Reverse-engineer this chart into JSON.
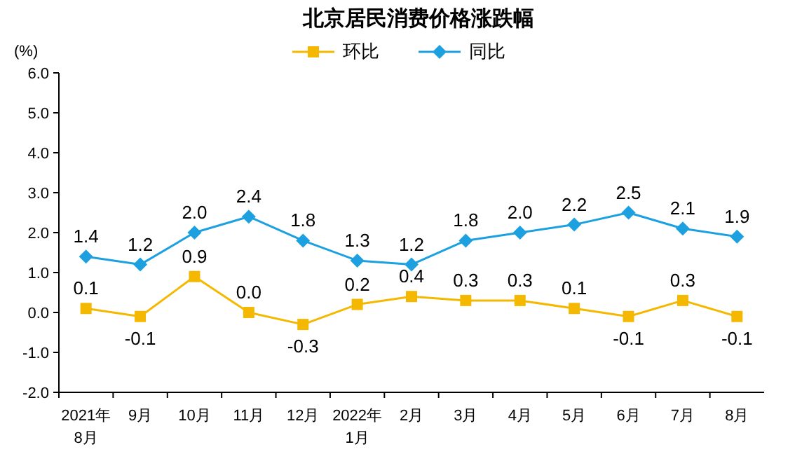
{
  "chart_data": {
    "type": "line",
    "title": "北京居民消费价格涨跌幅",
    "ylabel": "(%)",
    "categories": [
      "2021年\n8月",
      "9月",
      "10月",
      "11月",
      "12月",
      "2022年\n1月",
      "2月",
      "3月",
      "4月",
      "5月",
      "6月",
      "7月",
      "8月"
    ],
    "series": [
      {
        "name": "环比",
        "color": "#f5b800",
        "marker": "square",
        "values": [
          0.1,
          -0.1,
          0.9,
          0.0,
          -0.3,
          0.2,
          0.4,
          0.3,
          0.3,
          0.1,
          -0.1,
          0.3,
          -0.1
        ],
        "value_labels": [
          "0.1",
          "-0.1",
          "0.9",
          "0.0",
          "-0.3",
          "0.2",
          "0.4",
          "0.3",
          "0.3",
          "0.1",
          "-0.1",
          "0.3",
          "-0.1"
        ]
      },
      {
        "name": "同比",
        "color": "#1ca0e0",
        "marker": "diamond",
        "values": [
          1.4,
          1.2,
          2.0,
          2.4,
          1.8,
          1.3,
          1.2,
          1.8,
          2.0,
          2.2,
          2.5,
          2.1,
          1.9
        ],
        "value_labels": [
          "1.4",
          "1.2",
          "2.0",
          "2.4",
          "1.8",
          "1.3",
          "1.2",
          "1.8",
          "2.0",
          "2.2",
          "2.5",
          "2.1",
          "1.9"
        ]
      }
    ],
    "ylim": [
      -2,
      6
    ],
    "yticks": [
      {
        "value": -2,
        "label": "-2.0"
      },
      {
        "value": -1,
        "label": "-1.0"
      },
      {
        "value": 0,
        "label": "0.0"
      },
      {
        "value": 1,
        "label": "1.0"
      },
      {
        "value": 2,
        "label": "2.0"
      },
      {
        "value": 3,
        "label": "3.0"
      },
      {
        "value": 4,
        "label": "4.0"
      },
      {
        "value": 5,
        "label": "5.0"
      },
      {
        "value": 6,
        "label": "6.0"
      }
    ],
    "grid": false,
    "legend": "top",
    "line_style": "solid"
  }
}
